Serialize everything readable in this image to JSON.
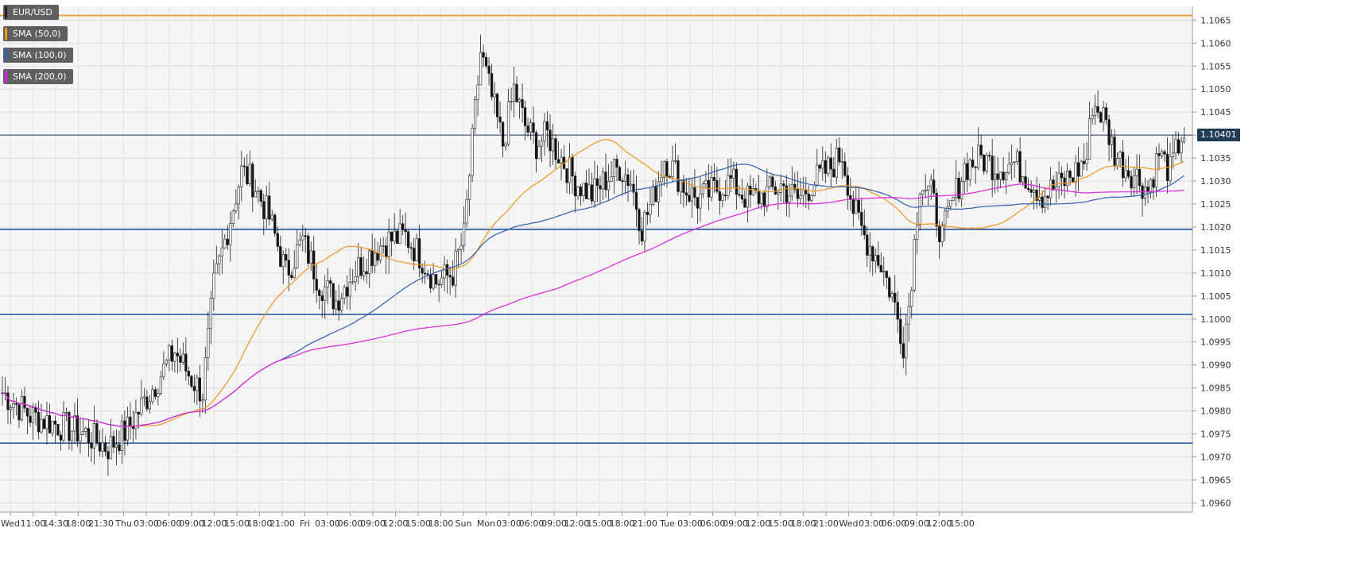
{
  "chart_data": {
    "type": "candlestick",
    "symbol": "EUR/USD",
    "ylim": [
      1.0958,
      1.1068
    ],
    "y_ticks": [
      "1.1065",
      "1.1060",
      "1.1055",
      "1.1050",
      "1.1045",
      "1.1040",
      "1.1035",
      "1.1030",
      "1.1025",
      "1.1020",
      "1.1015",
      "1.1010",
      "1.1005",
      "1.1000",
      "1.0995",
      "1.0990",
      "1.0985",
      "1.0980",
      "1.0975",
      "1.0970",
      "1.0965",
      "1.0960"
    ],
    "x_ticks": [
      "Wed",
      "11:00",
      "14:30",
      "18:00",
      "21:30",
      "Thu",
      "03:00",
      "06:00",
      "09:00",
      "12:00",
      "15:00",
      "18:00",
      "21:00",
      "Fri",
      "03:00",
      "06:00",
      "09:00",
      "12:00",
      "15:00",
      "18:00",
      "Sun",
      "Mon",
      "03:00",
      "06:00",
      "09:00",
      "12:00",
      "15:00",
      "18:00",
      "21:00",
      "Tue",
      "03:00",
      "06:00",
      "09:00",
      "12:00",
      "15:00",
      "18:00",
      "21:00",
      "Wed",
      "03:00",
      "06:00",
      "09:00",
      "12:00",
      "15:00"
    ],
    "current_price": "1.10401",
    "horizontal_levels": [
      {
        "value": 1.1066,
        "color": "#f0961e"
      },
      {
        "value": 1.104,
        "color": "#213a6b"
      },
      {
        "value": 1.10195,
        "color": "#1f4fa0"
      },
      {
        "value": 1.1001,
        "color": "#1f4fa0"
      },
      {
        "value": 1.0973,
        "color": "#1f4fa0"
      }
    ],
    "legend": [
      {
        "label": "EUR/USD",
        "color": "#222222"
      },
      {
        "label": "SMA (50,0)",
        "color": "#f0961e"
      },
      {
        "label": "SMA (100,0)",
        "color": "#2f5fb3"
      },
      {
        "label": "SMA (200,0)",
        "color": "#e020e0"
      }
    ],
    "price_anchors": [
      [
        0,
        1.0984
      ],
      [
        10,
        1.0979
      ],
      [
        20,
        1.0977
      ],
      [
        30,
        1.0975
      ],
      [
        38,
        1.0972
      ],
      [
        45,
        1.0976
      ],
      [
        55,
        1.0986
      ],
      [
        62,
        1.0993
      ],
      [
        68,
        1.0987
      ],
      [
        72,
        1.0984
      ],
      [
        76,
        1.1007
      ],
      [
        80,
        1.1017
      ],
      [
        86,
        1.1032
      ],
      [
        90,
        1.103
      ],
      [
        96,
        1.1022
      ],
      [
        102,
        1.101
      ],
      [
        108,
        1.1017
      ],
      [
        114,
        1.1008
      ],
      [
        120,
        1.1004
      ],
      [
        126,
        1.101
      ],
      [
        132,
        1.1014
      ],
      [
        138,
        1.1017
      ],
      [
        145,
        1.1018
      ],
      [
        150,
        1.1014
      ],
      [
        156,
        1.1008
      ],
      [
        162,
        1.101
      ],
      [
        166,
        1.1018
      ],
      [
        170,
        1.1045
      ],
      [
        172,
        1.1058
      ],
      [
        176,
        1.1048
      ],
      [
        180,
        1.1038
      ],
      [
        184,
        1.105
      ],
      [
        188,
        1.1042
      ],
      [
        192,
        1.1038
      ],
      [
        196,
        1.104
      ],
      [
        200,
        1.1036
      ],
      [
        206,
        1.103
      ],
      [
        212,
        1.1027
      ],
      [
        218,
        1.1031
      ],
      [
        222,
        1.1033
      ],
      [
        226,
        1.103
      ],
      [
        230,
        1.102
      ],
      [
        234,
        1.1026
      ],
      [
        238,
        1.1035
      ],
      [
        242,
        1.1032
      ],
      [
        246,
        1.1028
      ],
      [
        250,
        1.1026
      ],
      [
        256,
        1.1028
      ],
      [
        262,
        1.103
      ],
      [
        268,
        1.1026
      ],
      [
        274,
        1.1027
      ],
      [
        280,
        1.1029
      ],
      [
        286,
        1.1026
      ],
      [
        292,
        1.103
      ],
      [
        298,
        1.1033
      ],
      [
        302,
        1.1036
      ],
      [
        306,
        1.1024
      ],
      [
        310,
        1.1018
      ],
      [
        316,
        1.1012
      ],
      [
        320,
        1.1005
      ],
      [
        324,
        1.0995
      ],
      [
        326,
        1.1003
      ],
      [
        330,
        1.103
      ],
      [
        334,
        1.1027
      ],
      [
        338,
        1.1018
      ],
      [
        342,
        1.1026
      ],
      [
        346,
        1.1033
      ],
      [
        352,
        1.1035
      ],
      [
        358,
        1.1033
      ],
      [
        364,
        1.1034
      ],
      [
        370,
        1.103
      ],
      [
        374,
        1.1027
      ],
      [
        380,
        1.1029
      ],
      [
        386,
        1.1032
      ],
      [
        390,
        1.1035
      ],
      [
        392,
        1.1047
      ],
      [
        396,
        1.1044
      ],
      [
        400,
        1.1036
      ],
      [
        404,
        1.1033
      ],
      [
        408,
        1.1031
      ],
      [
        412,
        1.1028
      ],
      [
        416,
        1.1036
      ],
      [
        420,
        1.1032
      ],
      [
        424,
        1.104
      ]
    ]
  }
}
